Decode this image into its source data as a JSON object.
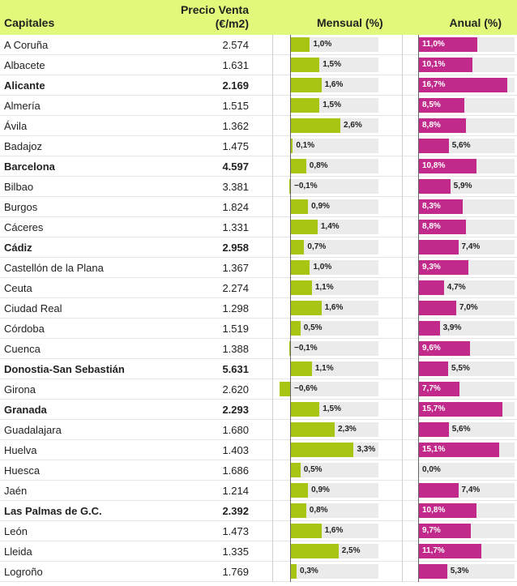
{
  "header": {
    "capitales": "Capitales",
    "precio_line1": "Precio Venta",
    "precio_line2": "(€/m2)",
    "mensual": "Mensual (%)",
    "anual": "Anual (%)"
  },
  "colors": {
    "header_bg": "#e1f97a",
    "mensual_bar": "#a7c512",
    "anual_bar": "#c12a8b",
    "track": "#ebebeb"
  },
  "chart_data": {
    "type": "table",
    "columns": [
      "Capitales",
      "Precio Venta (€/m2)",
      "Mensual (%)",
      "Anual (%)"
    ],
    "mensual_scale_max": 4.6,
    "anual_scale_max": 18.0,
    "rows": [
      {
        "name": "A Coruña",
        "price": "2.574",
        "mensual": 1.0,
        "mensual_label": "1,0%",
        "anual": 11.0,
        "anual_label": "11,0%",
        "bold": false
      },
      {
        "name": "Albacete",
        "price": "1.631",
        "mensual": 1.5,
        "mensual_label": "1,5%",
        "anual": 10.1,
        "anual_label": "10,1%",
        "bold": false
      },
      {
        "name": "Alicante",
        "price": "2.169",
        "mensual": 1.6,
        "mensual_label": "1,6%",
        "anual": 16.7,
        "anual_label": "16,7%",
        "bold": true
      },
      {
        "name": "Almería",
        "price": "1.515",
        "mensual": 1.5,
        "mensual_label": "1,5%",
        "anual": 8.5,
        "anual_label": "8,5%",
        "bold": false
      },
      {
        "name": "Ávila",
        "price": "1.362",
        "mensual": 2.6,
        "mensual_label": "2,6%",
        "anual": 8.8,
        "anual_label": "8,8%",
        "bold": false
      },
      {
        "name": "Badajoz",
        "price": "1.475",
        "mensual": 0.1,
        "mensual_label": "0,1%",
        "anual": 5.6,
        "anual_label": "5,6%",
        "bold": false
      },
      {
        "name": "Barcelona",
        "price": "4.597",
        "mensual": 0.8,
        "mensual_label": "0,8%",
        "anual": 10.8,
        "anual_label": "10,8%",
        "bold": true
      },
      {
        "name": "Bilbao",
        "price": "3.381",
        "mensual": -0.1,
        "mensual_label": "−0,1%",
        "anual": 5.9,
        "anual_label": "5,9%",
        "bold": false
      },
      {
        "name": "Burgos",
        "price": "1.824",
        "mensual": 0.9,
        "mensual_label": "0,9%",
        "anual": 8.3,
        "anual_label": "8,3%",
        "bold": false
      },
      {
        "name": "Cáceres",
        "price": "1.331",
        "mensual": 1.4,
        "mensual_label": "1,4%",
        "anual": 8.8,
        "anual_label": "8,8%",
        "bold": false
      },
      {
        "name": "Cádiz",
        "price": "2.958",
        "mensual": 0.7,
        "mensual_label": "0,7%",
        "anual": 7.4,
        "anual_label": "7,4%",
        "bold": true
      },
      {
        "name": "Castellón de la Plana",
        "price": "1.367",
        "mensual": 1.0,
        "mensual_label": "1,0%",
        "anual": 9.3,
        "anual_label": "9,3%",
        "bold": false
      },
      {
        "name": "Ceuta",
        "price": "2.274",
        "mensual": 1.1,
        "mensual_label": "1,1%",
        "anual": 4.7,
        "anual_label": "4,7%",
        "bold": false
      },
      {
        "name": "Ciudad Real",
        "price": "1.298",
        "mensual": 1.6,
        "mensual_label": "1,6%",
        "anual": 7.0,
        "anual_label": "7,0%",
        "bold": false
      },
      {
        "name": "Córdoba",
        "price": "1.519",
        "mensual": 0.5,
        "mensual_label": "0,5%",
        "anual": 3.9,
        "anual_label": "3,9%",
        "bold": false
      },
      {
        "name": "Cuenca",
        "price": "1.388",
        "mensual": -0.1,
        "mensual_label": "−0,1%",
        "anual": 9.6,
        "anual_label": "9,6%",
        "bold": false
      },
      {
        "name": "Donostia-San Sebastián",
        "price": "5.631",
        "mensual": 1.1,
        "mensual_label": "1,1%",
        "anual": 5.5,
        "anual_label": "5,5%",
        "bold": true
      },
      {
        "name": "Girona",
        "price": "2.620",
        "mensual": -0.6,
        "mensual_label": "−0,6%",
        "anual": 7.7,
        "anual_label": "7,7%",
        "bold": false
      },
      {
        "name": "Granada",
        "price": "2.293",
        "mensual": 1.5,
        "mensual_label": "1,5%",
        "anual": 15.7,
        "anual_label": "15,7%",
        "bold": true
      },
      {
        "name": "Guadalajara",
        "price": "1.680",
        "mensual": 2.3,
        "mensual_label": "2,3%",
        "anual": 5.6,
        "anual_label": "5,6%",
        "bold": false
      },
      {
        "name": "Huelva",
        "price": "1.403",
        "mensual": 3.3,
        "mensual_label": "3,3%",
        "anual": 15.1,
        "anual_label": "15,1%",
        "bold": false
      },
      {
        "name": "Huesca",
        "price": "1.686",
        "mensual": 0.5,
        "mensual_label": "0,5%",
        "anual": 0.0,
        "anual_label": "0,0%",
        "bold": false
      },
      {
        "name": "Jaén",
        "price": "1.214",
        "mensual": 0.9,
        "mensual_label": "0,9%",
        "anual": 7.4,
        "anual_label": "7,4%",
        "bold": false
      },
      {
        "name": "Las Palmas de G.C.",
        "price": "2.392",
        "mensual": 0.8,
        "mensual_label": "0,8%",
        "anual": 10.8,
        "anual_label": "10,8%",
        "bold": true
      },
      {
        "name": "León",
        "price": "1.473",
        "mensual": 1.6,
        "mensual_label": "1,6%",
        "anual": 9.7,
        "anual_label": "9,7%",
        "bold": false
      },
      {
        "name": "Lleida",
        "price": "1.335",
        "mensual": 2.5,
        "mensual_label": "2,5%",
        "anual": 11.7,
        "anual_label": "11,7%",
        "bold": false
      },
      {
        "name": "Logroño",
        "price": "1.769",
        "mensual": 0.3,
        "mensual_label": "0,3%",
        "anual": 5.3,
        "anual_label": "5,3%",
        "bold": false
      }
    ]
  }
}
